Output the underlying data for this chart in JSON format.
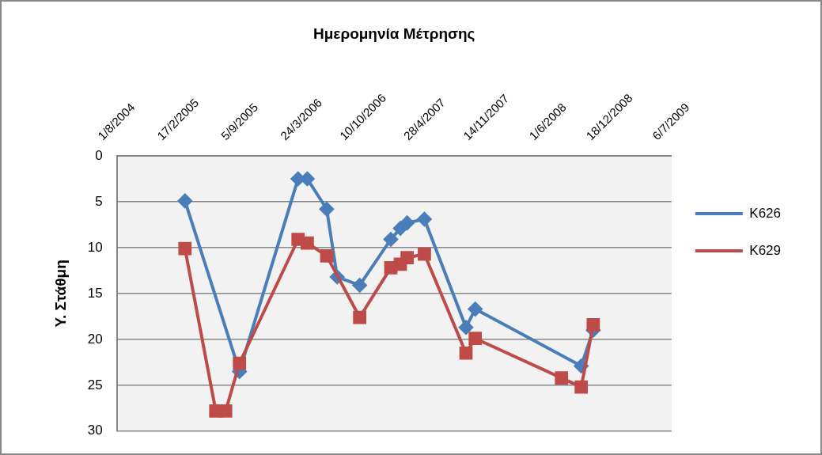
{
  "chart_data": {
    "type": "line",
    "xlabel": "Ημερομηνία Μέτρησης",
    "ylabel": "Υ. Στάθμη",
    "xlim": [
      "2004-08-01",
      "2009-07-06"
    ],
    "xticks": [
      {
        "value": "2004-08-01",
        "label": "1/8/2004"
      },
      {
        "value": "2005-02-17",
        "label": "17/2/2005"
      },
      {
        "value": "2005-09-05",
        "label": "5/9/2005"
      },
      {
        "value": "2006-03-24",
        "label": "24/3/2006"
      },
      {
        "value": "2006-10-10",
        "label": "10/10/2006"
      },
      {
        "value": "2007-04-28",
        "label": "28/4/2007"
      },
      {
        "value": "2007-11-14",
        "label": "14/11/2007"
      },
      {
        "value": "2008-06-01",
        "label": "1/6/2008"
      },
      {
        "value": "2008-12-18",
        "label": "18/12/2008"
      },
      {
        "value": "2009-07-06",
        "label": "6/7/2009"
      }
    ],
    "ylim": [
      30,
      0
    ],
    "yticks": [
      0,
      5,
      10,
      15,
      20,
      25,
      30
    ],
    "grid": "y",
    "legend": "right",
    "line_style": "solid",
    "series": [
      {
        "name": "Κ626",
        "color": "#4a7ebb",
        "marker": "diamond",
        "x": [
          "2005-03-10",
          "2005-09-03",
          "2006-03-12",
          "2006-04-11",
          "2006-06-13",
          "2006-07-17",
          "2006-09-28",
          "2007-01-07",
          "2007-02-07",
          "2007-03-01",
          "2007-04-26",
          "2007-09-08",
          "2007-10-08",
          "2008-09-16",
          "2008-10-25"
        ],
        "values": [
          4.9,
          23.5,
          2.5,
          2.5,
          5.8,
          13.2,
          14.1,
          9.1,
          7.9,
          7.3,
          6.9,
          18.7,
          16.7,
          22.9,
          19.0
        ]
      },
      {
        "name": "Κ629",
        "color": "#be4b48",
        "marker": "square",
        "x": [
          "2005-03-10",
          "2005-06-18",
          "2005-07-20",
          "2005-09-03",
          "2006-03-12",
          "2006-04-11",
          "2006-06-13",
          "2006-09-28",
          "2007-01-07",
          "2007-02-07",
          "2007-03-01",
          "2007-04-26",
          "2007-09-08",
          "2007-10-08",
          "2008-07-14",
          "2008-09-16",
          "2008-10-25"
        ],
        "values": [
          10.1,
          27.8,
          27.8,
          22.6,
          9.1,
          9.5,
          10.9,
          17.6,
          12.2,
          11.8,
          11.1,
          10.7,
          21.5,
          19.9,
          24.2,
          25.2,
          18.4
        ]
      }
    ]
  }
}
